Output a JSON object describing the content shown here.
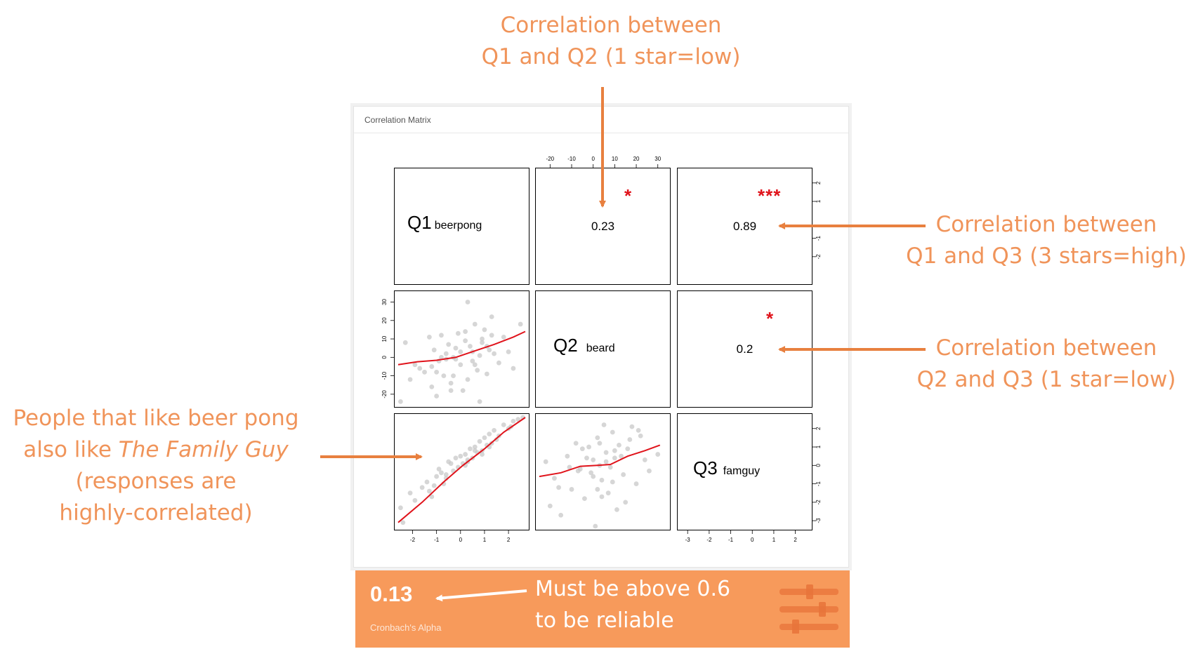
{
  "annotations": {
    "q1_q2": [
      "Correlation between",
      "Q1 and Q2 (1 star=low)"
    ],
    "q1_q3": [
      "Correlation between",
      "Q1 and Q3 (3 stars=high)"
    ],
    "q2_q3": [
      "Correlation between",
      "Q2 and Q3 (1 star=low)"
    ],
    "beer_pong": [
      "People that like beer pong",
      "also like ",
      "The Family Guy",
      "(responses are",
      "highly-correlated)"
    ],
    "alpha_note": [
      "Must be above 0.6",
      "to be reliable"
    ]
  },
  "panel": {
    "title": "Correlation Matrix"
  },
  "footer": {
    "alpha_value": "0.13",
    "alpha_label": "Cronbach's Alpha",
    "icon": "sliders-icon"
  },
  "colors": {
    "accent_orange": "#f0945a",
    "footer_bg": "#f79a5b",
    "loess_red": "#e0131b",
    "point_gray": "#c8c8c8"
  },
  "chart_data": {
    "type": "scatter",
    "title": "",
    "variables": [
      {
        "code": "Q1",
        "name": "beerpong"
      },
      {
        "code": "Q2",
        "name": "beard"
      },
      {
        "code": "Q3",
        "name": "famguy"
      }
    ],
    "correlations": [
      {
        "pair": [
          "Q1",
          "Q2"
        ],
        "r": 0.23,
        "r_label": "0.23",
        "stars": "*"
      },
      {
        "pair": [
          "Q1",
          "Q3"
        ],
        "r": 0.89,
        "r_label": "0.89",
        "stars": "***"
      },
      {
        "pair": [
          "Q2",
          "Q3"
        ],
        "r": 0.2,
        "r_label": "0.2",
        "stars": "*"
      }
    ],
    "axes": {
      "q1_ticks": [
        "-2",
        "-1",
        "0",
        "1",
        "2"
      ],
      "q2_ticks": [
        "-20",
        "-10",
        "0",
        "10",
        "20",
        "30"
      ],
      "q3_ticks": [
        "-3",
        "-2",
        "-1",
        "0",
        "1",
        "2"
      ],
      "q1_range": [
        -2.6,
        2.7
      ],
      "q2_range": [
        -25,
        34
      ],
      "q3_range": [
        -3.3,
        2.6
      ],
      "q3_right_ticks_top_row": [
        "2",
        "1",
        "-1",
        "-2"
      ]
    },
    "scatter_q2_vs_q1": {
      "x": [
        -2.5,
        -2.3,
        -2.1,
        -1.9,
        -1.7,
        -1.5,
        -1.3,
        -1.2,
        -1.1,
        -1.0,
        -0.9,
        -0.8,
        -0.7,
        -0.6,
        -0.5,
        -0.4,
        -0.3,
        -0.2,
        -0.1,
        0.0,
        0.1,
        0.2,
        0.3,
        0.4,
        0.5,
        0.6,
        0.7,
        0.8,
        0.9,
        1.0,
        1.1,
        1.2,
        1.3,
        1.4,
        1.6,
        1.8,
        2.0,
        2.2,
        2.5,
        -1.0,
        -0.6,
        -0.3,
        0.2,
        0.5,
        0.9,
        1.3,
        -1.2,
        -0.4,
        0.0,
        0.6,
        1.1,
        -0.8,
        -0.2,
        0.3,
        0.8
      ],
      "y": [
        -24,
        8,
        -12,
        -4,
        -6,
        -8,
        11,
        -16,
        4,
        -21,
        -2,
        12,
        -10,
        -1,
        7,
        -14,
        0,
        5,
        13,
        -4,
        -18,
        9,
        -12,
        6,
        3,
        18,
        -7,
        1,
        10,
        15,
        -9,
        4,
        22,
        2,
        -3,
        11,
        3,
        -6,
        18,
        -8,
        2,
        -10,
        14,
        -2,
        8,
        12,
        -5,
        -18,
        3,
        -4,
        6,
        0,
        -1,
        30,
        -24
      ],
      "loess": {
        "x": [
          -2.6,
          -1.8,
          -1.0,
          -0.2,
          0.6,
          1.4,
          2.2,
          2.7
        ],
        "y": [
          -4,
          -2.4,
          -1.6,
          0,
          3.5,
          7,
          11,
          14
        ]
      }
    },
    "scatter_q3_vs_q1": {
      "x": [
        -2.5,
        -2.4,
        -2.1,
        -1.9,
        -1.6,
        -1.4,
        -1.2,
        -1.0,
        -0.9,
        -0.7,
        -0.6,
        -0.5,
        -0.3,
        -0.2,
        -0.1,
        0.0,
        0.1,
        0.2,
        0.3,
        0.4,
        0.5,
        0.6,
        0.7,
        0.8,
        0.9,
        1.0,
        1.1,
        1.2,
        1.3,
        1.4,
        1.6,
        1.8,
        2.0,
        2.2,
        2.4,
        2.6,
        -1.3,
        -0.8,
        -0.4,
        0.3,
        0.9,
        1.5,
        2.1,
        -1.1,
        -0.6,
        0.2,
        0.6,
        1.2
      ],
      "y": [
        -2.3,
        -3.1,
        -1.5,
        -1.9,
        -1.2,
        -0.9,
        -1.7,
        -0.6,
        -0.2,
        -1.0,
        -0.5,
        0.2,
        -0.3,
        0.4,
        -0.1,
        0.5,
        0.1,
        0.6,
        0.3,
        0.9,
        0.4,
        1.0,
        0.7,
        1.3,
        0.8,
        1.5,
        1.1,
        1.7,
        1.2,
        1.9,
        1.6,
        2.2,
        2.0,
        2.4,
        2.5,
        2.6,
        -1.4,
        -0.4,
        0.1,
        0.2,
        0.6,
        1.4,
        2.1,
        -1.1,
        -0.7,
        0.0,
        0.8,
        1.0
      ],
      "loess": {
        "x": [
          -2.6,
          -1.6,
          -0.7,
          0.1,
          1.0,
          1.8,
          2.7
        ],
        "y": [
          -3.1,
          -2.0,
          -0.9,
          0.0,
          0.9,
          1.8,
          2.6
        ]
      }
    },
    "scatter_q3_vs_q2": {
      "x": [
        -22,
        -20,
        -18,
        -15,
        -12,
        -10,
        -8,
        -6,
        -4,
        -2,
        -1,
        0,
        1,
        2,
        3,
        4,
        5,
        6,
        7,
        8,
        9,
        10,
        11,
        12,
        14,
        16,
        18,
        20,
        22,
        24,
        26,
        30,
        -16,
        -5,
        0,
        3,
        6,
        9,
        13,
        17,
        -11,
        -3,
        4,
        10,
        15,
        21,
        -7,
        2
      ],
      "y": [
        0.2,
        -2.2,
        -0.7,
        -2.7,
        0.5,
        -1.3,
        1.2,
        -0.2,
        -1.8,
        1.0,
        -0.4,
        0.3,
        -3.3,
        1.5,
        0.0,
        -0.8,
        2.2,
        0.7,
        -1.5,
        -0.1,
        1.8,
        0.4,
        -2.4,
        1.1,
        -0.5,
        0.9,
        2.1,
        -1.0,
        1.6,
        0.3,
        -0.3,
        0.6,
        -1.2,
        0.9,
        -0.6,
        1.2,
        0.2,
        -0.9,
        0.5,
        1.4,
        -0.1,
        0.4,
        -1.7,
        0.8,
        -2.0,
        1.9,
        -0.3,
        -1.3
      ],
      "loess": {
        "x": [
          -25,
          -15,
          -6,
          2,
          8,
          16,
          24,
          31
        ],
        "y": [
          -0.6,
          -0.4,
          -0.05,
          0.0,
          0.05,
          0.5,
          0.8,
          1.1
        ]
      }
    }
  }
}
